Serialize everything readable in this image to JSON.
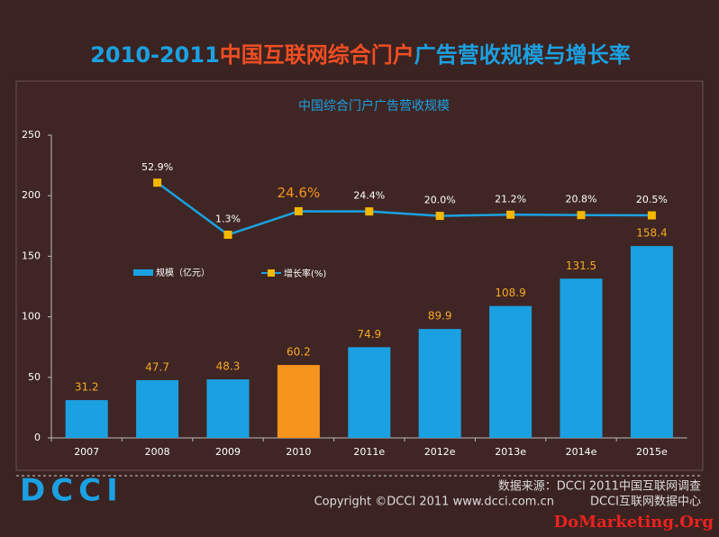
{
  "chart_data": {
    "type": "bar",
    "title": [
      "2010-2011",
      "中国互联网综合门户",
      "广告营收规模与增长率"
    ],
    "subtitle": "中国综合门户广告营收规模",
    "categories": [
      "2007",
      "2008",
      "2009",
      "2010",
      "2011e",
      "2012e",
      "2013e",
      "2014e",
      "2015e"
    ],
    "highlight": "2010",
    "highlight_color": "#f7941d",
    "ylim": [
      0,
      250
    ],
    "yticks": [
      0,
      50,
      100,
      150,
      200,
      250
    ],
    "y2lim": [
      -200,
      100
    ],
    "series": [
      {
        "name": "规模（亿元）",
        "color": "#1ba1e2",
        "values": [
          31.2,
          47.7,
          48.3,
          60.2,
          74.9,
          89.9,
          108.9,
          131.5,
          158.4
        ]
      },
      {
        "name": "增长率(%)",
        "type": "line",
        "axis": "y2",
        "color": "#1ba1e2",
        "marker_color": "#f5b800",
        "values": [
          null,
          52.9,
          1.3,
          24.6,
          24.4,
          20.0,
          21.2,
          20.8,
          20.5
        ],
        "value_labels": [
          null,
          "52.9%",
          "1.3%",
          "24.6%",
          "24.4%",
          "20.0%",
          "21.2%",
          "20.8%",
          "20.5%"
        ]
      }
    ]
  },
  "footer": {
    "logo": "DCCI",
    "source": "数据来源：DCCI 2011中国互联网调查",
    "copyright": "Copyright ©DCCI 2011    www.dcci.com.cn",
    "org": "DCCI互联网数据中心",
    "watermark": "DoMarketing.Org"
  }
}
